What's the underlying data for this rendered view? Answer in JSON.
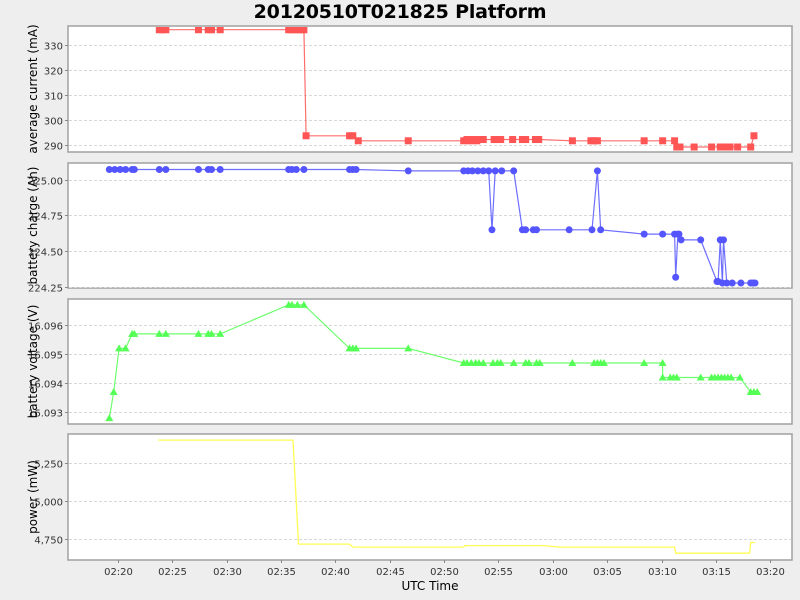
{
  "title": "20120510T021825 Platform",
  "chart_data": {
    "type": "line",
    "title": "20120510T021825 Platform",
    "xlabel": "UTC Time",
    "x_ticks": [
      "02:20",
      "02:25",
      "02:30",
      "02:35",
      "02:40",
      "02:45",
      "02:50",
      "02:55",
      "03:00",
      "03:05",
      "03:10",
      "03:15",
      "03:20"
    ],
    "x_range_minutes": [
      -4.6,
      62.0
    ],
    "x_unit_note": "x values are minutes after 02:20 UTC",
    "panels": [
      {
        "name": "average-current",
        "ylabel": "average current (mA)",
        "color": "#ff5555",
        "marker": "square",
        "ylim": [
          287,
          337.5
        ],
        "y_ticks": [
          290,
          300,
          310,
          320,
          330
        ],
        "y_tick_labels": [
          "290",
          "300",
          "310",
          "320",
          "330"
        ],
        "x": [
          3.8,
          4.1,
          4.4,
          7.4,
          8.3,
          8.6,
          9.4,
          15.7,
          16.0,
          16.3,
          16.6,
          16.9,
          17.1,
          17.3,
          21.3,
          21.6,
          22.1,
          26.7,
          31.8,
          32.1,
          32.4,
          32.7,
          33.0,
          33.3,
          33.6,
          34.6,
          34.9,
          35.2,
          36.3,
          37.2,
          37.5,
          38.4,
          38.7,
          41.8,
          43.5,
          43.8,
          44.1,
          48.4,
          50.1,
          51.2,
          51.4,
          51.7,
          53.0,
          54.6,
          55.4,
          55.7,
          56.0,
          56.3,
          57.0,
          58.2,
          58.5
        ],
        "y": [
          336,
          336,
          336,
          336,
          336,
          336,
          336,
          336,
          336,
          336,
          336,
          336,
          336,
          293.5,
          293.5,
          293.5,
          291.5,
          291.5,
          291.5,
          292,
          291.5,
          292,
          291.5,
          292,
          292,
          292,
          292,
          292,
          292,
          292,
          292,
          292,
          292,
          291.5,
          291.5,
          291.5,
          291.5,
          291.5,
          291.5,
          291.5,
          289,
          289,
          289,
          289,
          289,
          289,
          289,
          289,
          289,
          289,
          293.5
        ]
      },
      {
        "name": "battery-charge",
        "ylabel": "battery charge (Ah)",
        "color": "#5555ff",
        "marker": "circle",
        "ylim": [
          224.245,
          225.115
        ],
        "y_ticks": [
          224.25,
          224.5,
          224.75,
          225.0
        ],
        "y_tick_labels": [
          "224.25",
          "224.50",
          "224.75",
          "225.00"
        ],
        "x": [
          -0.8,
          -0.3,
          0.2,
          0.7,
          1.3,
          1.5,
          3.8,
          4.4,
          7.4,
          8.3,
          8.6,
          9.4,
          15.7,
          16.0,
          16.4,
          17.1,
          21.3,
          21.6,
          21.9,
          26.7,
          31.8,
          32.2,
          32.6,
          33.1,
          33.6,
          34.1,
          34.4,
          34.7,
          35.3,
          36.4,
          37.2,
          37.5,
          38.2,
          38.5,
          41.5,
          43.6,
          44.1,
          44.4,
          48.4,
          50.1,
          51.2,
          51.3,
          51.5,
          51.6,
          51.8,
          53.6,
          55.1,
          55.2,
          55.4,
          55.6,
          55.7,
          56.0,
          56.5,
          57.3,
          58.2,
          58.4,
          58.6
        ],
        "y": [
          225.07,
          225.07,
          225.07,
          225.07,
          225.07,
          225.07,
          225.07,
          225.07,
          225.07,
          225.07,
          225.07,
          225.07,
          225.07,
          225.07,
          225.07,
          225.07,
          225.07,
          225.07,
          225.07,
          225.06,
          225.06,
          225.06,
          225.06,
          225.06,
          225.06,
          225.06,
          224.65,
          225.06,
          225.06,
          225.06,
          224.65,
          224.65,
          224.65,
          224.65,
          224.65,
          224.65,
          225.06,
          224.65,
          224.62,
          224.62,
          224.62,
          224.32,
          224.62,
          224.62,
          224.58,
          224.58,
          224.29,
          224.29,
          224.58,
          224.28,
          224.58,
          224.28,
          224.28,
          224.28,
          224.28,
          224.28,
          224.28
        ]
      },
      {
        "name": "battery-voltage",
        "ylabel": "battery voltage (V)",
        "color": "#55ff55",
        "marker": "triangle",
        "ylim": [
          16.0926,
          16.0969
        ],
        "y_ticks": [
          16.093,
          16.094,
          16.095,
          16.096
        ],
        "y_tick_labels": [
          "16.093",
          "16.094",
          "16.095",
          "16.096"
        ],
        "x": [
          -0.8,
          -0.4,
          0.1,
          0.7,
          1.3,
          1.5,
          3.8,
          4.4,
          7.4,
          8.3,
          8.6,
          9.4,
          15.7,
          16.0,
          16.5,
          17.1,
          21.3,
          21.6,
          21.9,
          26.7,
          31.8,
          32.1,
          32.5,
          32.9,
          33.2,
          33.6,
          34.5,
          34.9,
          35.2,
          36.4,
          37.5,
          37.8,
          38.5,
          38.8,
          41.8,
          43.8,
          44.1,
          44.4,
          44.7,
          48.4,
          50.1,
          50.1,
          50.8,
          51.1,
          51.4,
          53.6,
          54.6,
          54.9,
          55.2,
          55.5,
          55.8,
          56.1,
          56.4,
          57.2,
          58.2,
          58.5,
          58.8
        ],
        "y": [
          16.0928,
          16.0937,
          16.0952,
          16.0952,
          16.0957,
          16.0957,
          16.0957,
          16.0957,
          16.0957,
          16.0957,
          16.0957,
          16.0957,
          16.0967,
          16.0967,
          16.0967,
          16.0967,
          16.0952,
          16.0952,
          16.0952,
          16.0952,
          16.0947,
          16.0947,
          16.0947,
          16.0947,
          16.0947,
          16.0947,
          16.0947,
          16.0947,
          16.0947,
          16.0947,
          16.0947,
          16.0947,
          16.0947,
          16.0947,
          16.0947,
          16.0947,
          16.0947,
          16.0947,
          16.0947,
          16.0947,
          16.0947,
          16.0942,
          16.0942,
          16.0942,
          16.0942,
          16.0942,
          16.0942,
          16.0942,
          16.0942,
          16.0942,
          16.0942,
          16.0942,
          16.0942,
          16.0942,
          16.0937,
          16.0937,
          16.0937
        ]
      },
      {
        "name": "power",
        "ylabel": "power (mW)",
        "color": "#ffff55",
        "marker": "none",
        "ylim": [
          4610,
          5440
        ],
        "y_ticks": [
          4750,
          5000,
          5250
        ],
        "y_tick_labels": [
          "4,750",
          "5,000",
          "5,250"
        ],
        "x": [
          3.7,
          16.1,
          16.6,
          21.3,
          21.6,
          31.8,
          31.9,
          39.2,
          40.6,
          51.2,
          51.3,
          58.1,
          58.2,
          58.6
        ],
        "y": [
          5400,
          5400,
          4715,
          4715,
          4695,
          4695,
          4705,
          4705,
          4695,
          4695,
          4655,
          4655,
          4725,
          4725
        ]
      }
    ]
  }
}
